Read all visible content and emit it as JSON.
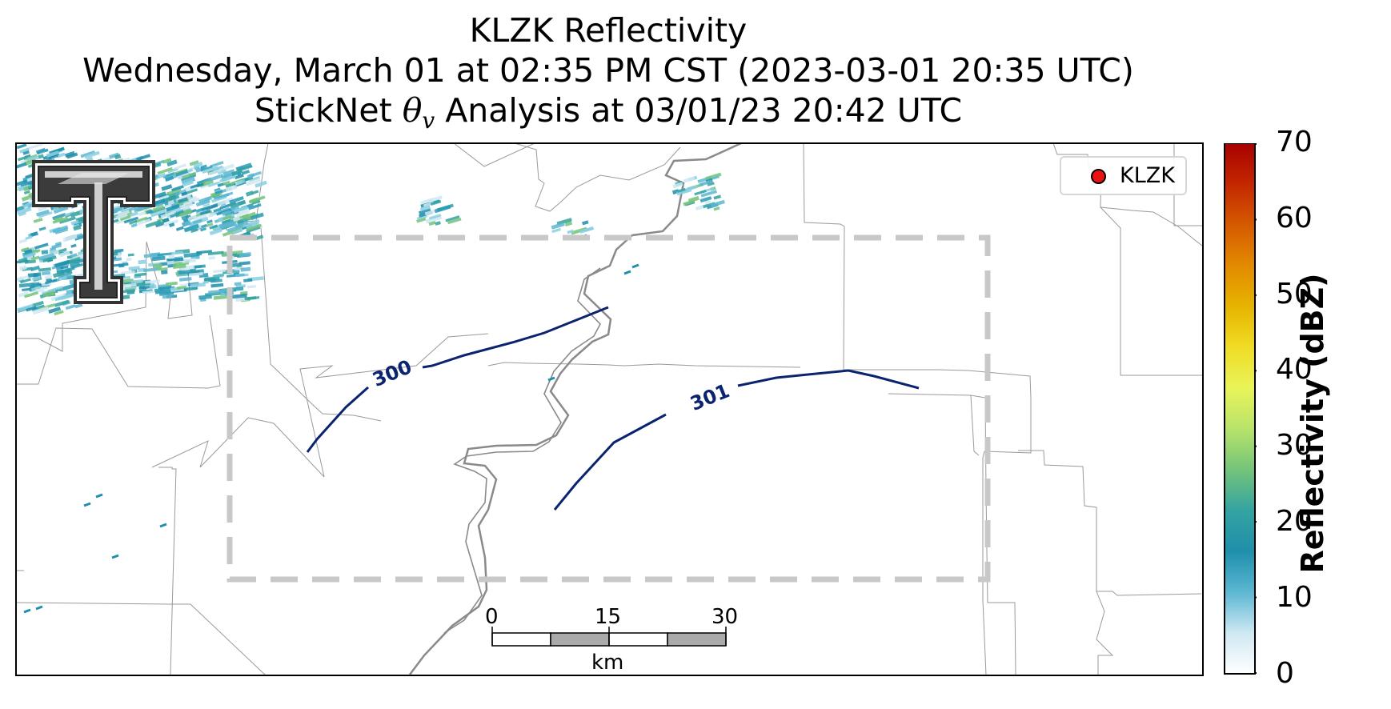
{
  "title": {
    "line1": "KLZK Reflectivity",
    "line2": "Wednesday, March 01 at 02:35 PM CST (2023-03-01 20:35 UTC)",
    "line3_prefix": "StickNet ",
    "line3_theta": "θ",
    "line3_sub": "v",
    "line3_suffix": " Analysis at 03/01/23 20:42 UTC"
  },
  "legend": {
    "label": "KLZK",
    "marker_color": "#ee1111"
  },
  "contours": [
    {
      "label": "300"
    },
    {
      "label": "301"
    }
  ],
  "contour_color": "#0b2470",
  "analysis_box_color": "#c8c8c8",
  "river_color": "#808080",
  "scale_bar": {
    "ticks": [
      "0",
      "15",
      "30"
    ],
    "unit": "km"
  },
  "colorbar": {
    "label": "Reflectivity (dBZ)",
    "ticks": [
      "70",
      "60",
      "50",
      "40",
      "30",
      "20",
      "10",
      "0"
    ],
    "colors": [
      "#ffffff",
      "#cfe8f2",
      "#5cb7d2",
      "#1f8fac",
      "#33a3a1",
      "#74c47a",
      "#b8e36a",
      "#e9f45a",
      "#f0dc25",
      "#e6b400",
      "#e38a00",
      "#d55a00",
      "#c42700",
      "#a80000"
    ]
  },
  "logo": {
    "name": "Texas Tech Double T"
  }
}
